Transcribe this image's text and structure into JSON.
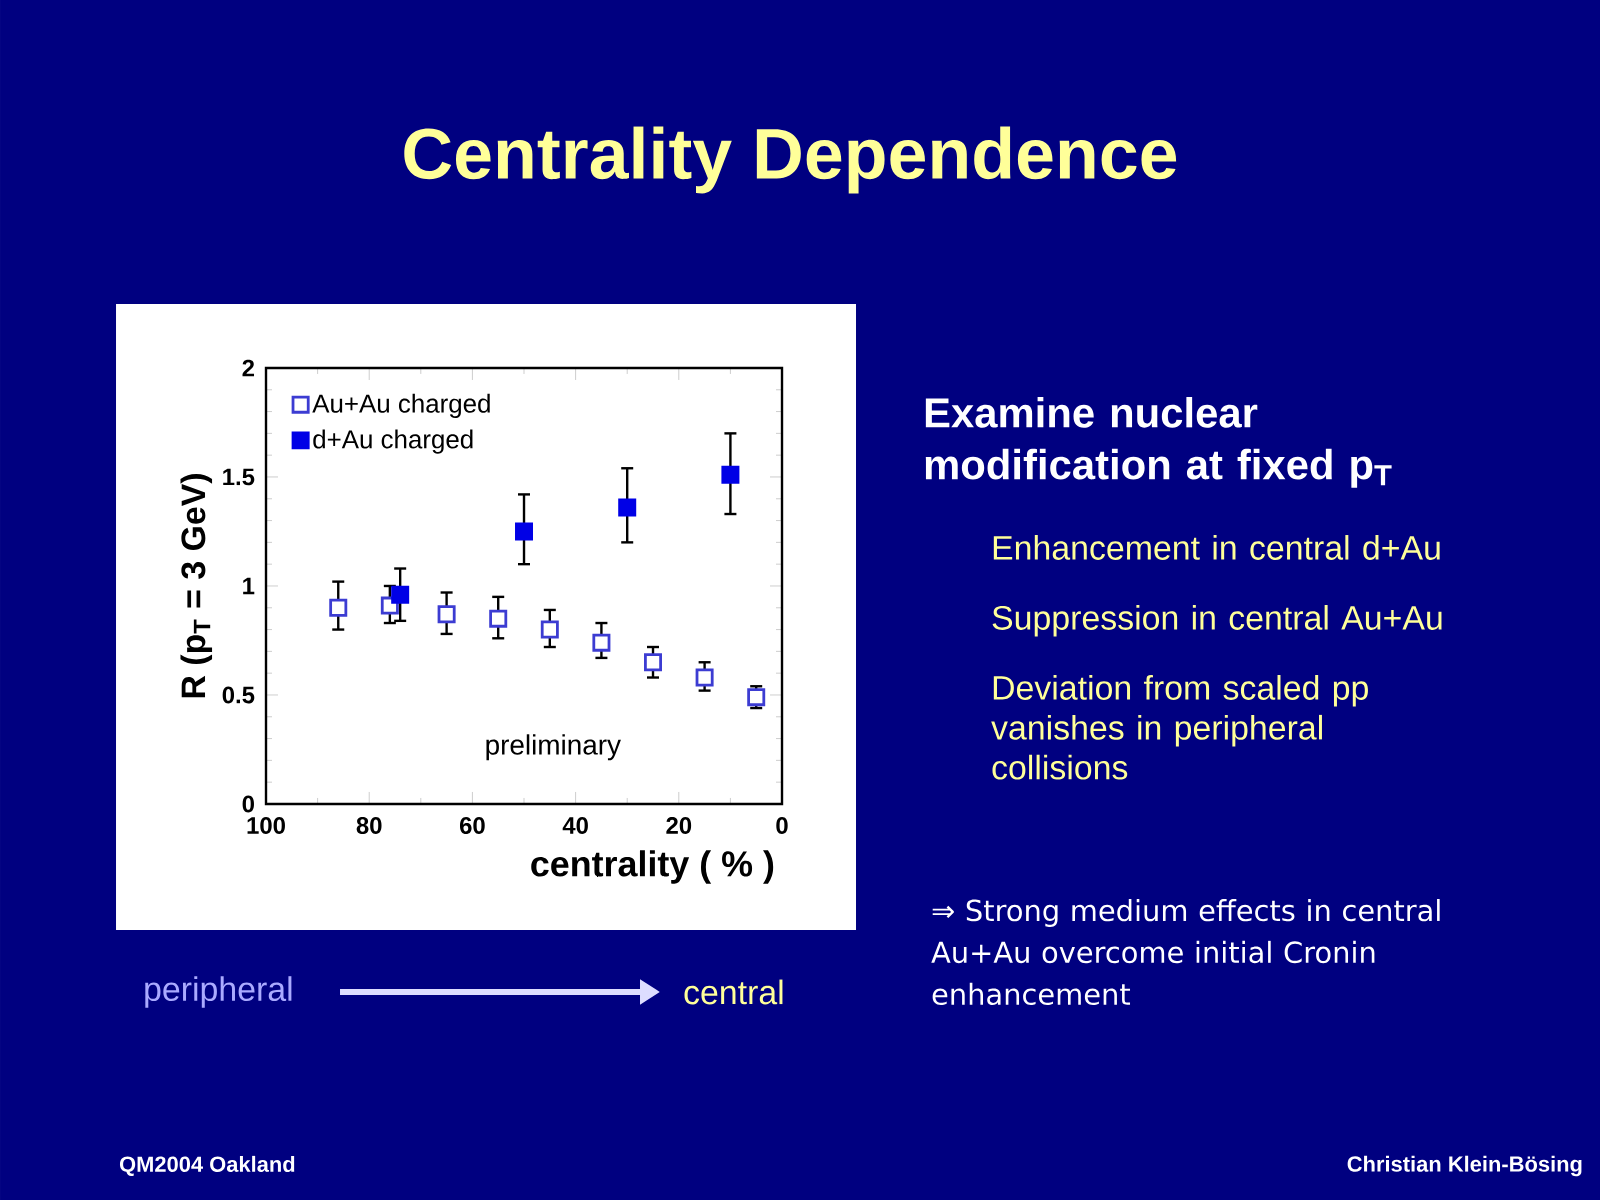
{
  "chart_data": {
    "type": "scatter",
    "title": "Centrality Dependence",
    "xlabel": "centrality ( % )",
    "ylabel": "R (p$_{T}$ = 3 GeV)",
    "xlim": [
      100,
      0
    ],
    "xticks": [
      100,
      80,
      60,
      40,
      20,
      0
    ],
    "ylim": [
      0,
      2
    ],
    "yticks": [
      0,
      0.5,
      1,
      1.5,
      2
    ],
    "legend": "top left",
    "marker": "square",
    "series": [
      {
        "name": "Au+Au charged",
        "color": "#3c3cd2",
        "x": [
          86,
          76,
          65,
          55,
          45,
          35,
          25,
          15,
          5
        ],
        "values": [
          0.9,
          0.91,
          0.87,
          0.85,
          0.8,
          0.74,
          0.65,
          0.58,
          0.49
        ],
        "errors": [
          [
            0.8,
            1.02
          ],
          [
            0.83,
            1.0
          ],
          [
            0.78,
            0.97
          ],
          [
            0.76,
            0.95
          ],
          [
            0.72,
            0.89
          ],
          [
            0.67,
            0.83
          ],
          [
            0.58,
            0.72
          ],
          [
            0.52,
            0.65
          ],
          [
            0.44,
            0.54
          ]
        ]
      },
      {
        "name": "d+Au charged",
        "color": "#0000e6",
        "x": [
          74,
          50,
          30,
          10
        ],
        "values": [
          0.96,
          1.25,
          1.36,
          1.51
        ],
        "errors": [
          [
            0.84,
            1.08
          ],
          [
            1.1,
            1.42
          ],
          [
            1.2,
            1.54
          ],
          [
            1.33,
            1.7
          ]
        ]
      }
    ],
    "annotations": [
      "preliminary",
      "Examine nuclear modification at fixed p$_{T}$",
      "Enhancement in central d+Au",
      "Suppression in central Au+Au",
      "Deviation from scaled pp vanishes in peripheral collisions",
      "⇒ Strong medium effects in central Au+Au overcome initial Cronin enhancement",
      "peripheral",
      "central",
      "QM2004 Oakland",
      "Christian Klein-Bösing"
    ]
  }
}
